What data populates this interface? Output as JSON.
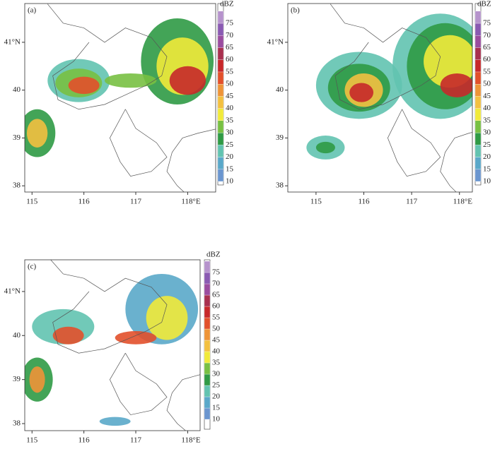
{
  "chart_data": [
    {
      "type": "map",
      "panel_label": "(a)",
      "xlim": [
        114.86,
        118.54
      ],
      "ylim": [
        37.87,
        41.81
      ],
      "xticks": [
        115,
        116,
        117,
        {
          "value": 118,
          "label": "118°E"
        }
      ],
      "yticks": [
        38,
        39,
        40,
        {
          "value": 41,
          "label": "41°N"
        }
      ],
      "colorbar": {
        "unit": "dBZ",
        "levels": [
          10,
          15,
          20,
          25,
          30,
          35,
          40,
          45,
          50,
          55,
          60,
          65,
          70,
          75
        ],
        "colors": [
          "#6b96cf",
          "#5aa8c9",
          "#62c3b0",
          "#2f9a45",
          "#78c043",
          "#f1ea3a",
          "#f3c040",
          "#ee9438",
          "#e2502b",
          "#c7282a",
          "#a8304f",
          "#9a4c9f",
          "#8a5ab2",
          "#b693cc"
        ]
      }
    },
    {
      "type": "map",
      "panel_label": "(b)",
      "xlim": [
        114.41,
        118.27
      ],
      "ylim": [
        37.87,
        41.81
      ],
      "xticks": [
        115,
        116,
        117,
        {
          "value": 118,
          "label": "118°E"
        }
      ],
      "yticks": [
        38,
        39,
        40,
        {
          "value": 41,
          "label": "41°N"
        }
      ],
      "colorbar": {
        "unit": "dBZ",
        "levels": [
          10,
          15,
          20,
          25,
          30,
          35,
          40,
          45,
          50,
          55,
          60,
          65,
          70,
          75
        ],
        "colors": [
          "#6b96cf",
          "#5aa8c9",
          "#62c3b0",
          "#2f9a45",
          "#78c043",
          "#f1ea3a",
          "#f3c040",
          "#ee9438",
          "#e2502b",
          "#c7282a",
          "#a8304f",
          "#9a4c9f",
          "#8a5ab2",
          "#b693cc"
        ]
      }
    },
    {
      "type": "map",
      "panel_label": "(c)",
      "xlim": [
        114.86,
        118.24
      ],
      "ylim": [
        37.84,
        41.72
      ],
      "xticks": [
        115,
        116,
        117,
        {
          "value": 118,
          "label": "118°E"
        }
      ],
      "yticks": [
        38,
        39,
        40,
        {
          "value": 41,
          "label": "41°N"
        }
      ],
      "colorbar": {
        "unit": "dBZ",
        "levels": [
          10,
          15,
          20,
          25,
          30,
          35,
          40,
          45,
          50,
          55,
          60,
          65,
          70,
          75
        ],
        "colors": [
          "#6b96cf",
          "#5aa8c9",
          "#62c3b0",
          "#2f9a45",
          "#78c043",
          "#f1ea3a",
          "#f3c040",
          "#ee9438",
          "#e2502b",
          "#c7282a",
          "#a8304f",
          "#9a4c9f",
          "#8a5ab2",
          "#b693cc"
        ]
      }
    }
  ]
}
